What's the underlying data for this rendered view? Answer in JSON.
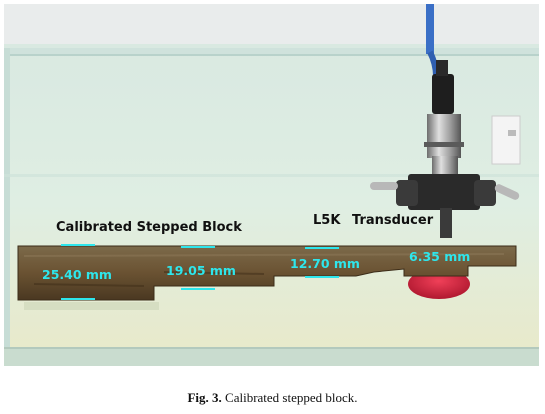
{
  "photo": {
    "title_label": "Calibrated Stepped Block",
    "transducer_label": "L5K",
    "transducer_word": "Transducer",
    "thickness_labels": [
      "25.40 mm",
      "19.05 mm",
      "12.70 mm",
      "6.35 mm"
    ]
  },
  "caption": {
    "fig_number": "Fig. 3.",
    "text": "Calibrated stepped block."
  },
  "colors": {
    "thickness_text": "#2ee6ec",
    "block": "#6b5335",
    "water": "#d7ece4"
  }
}
